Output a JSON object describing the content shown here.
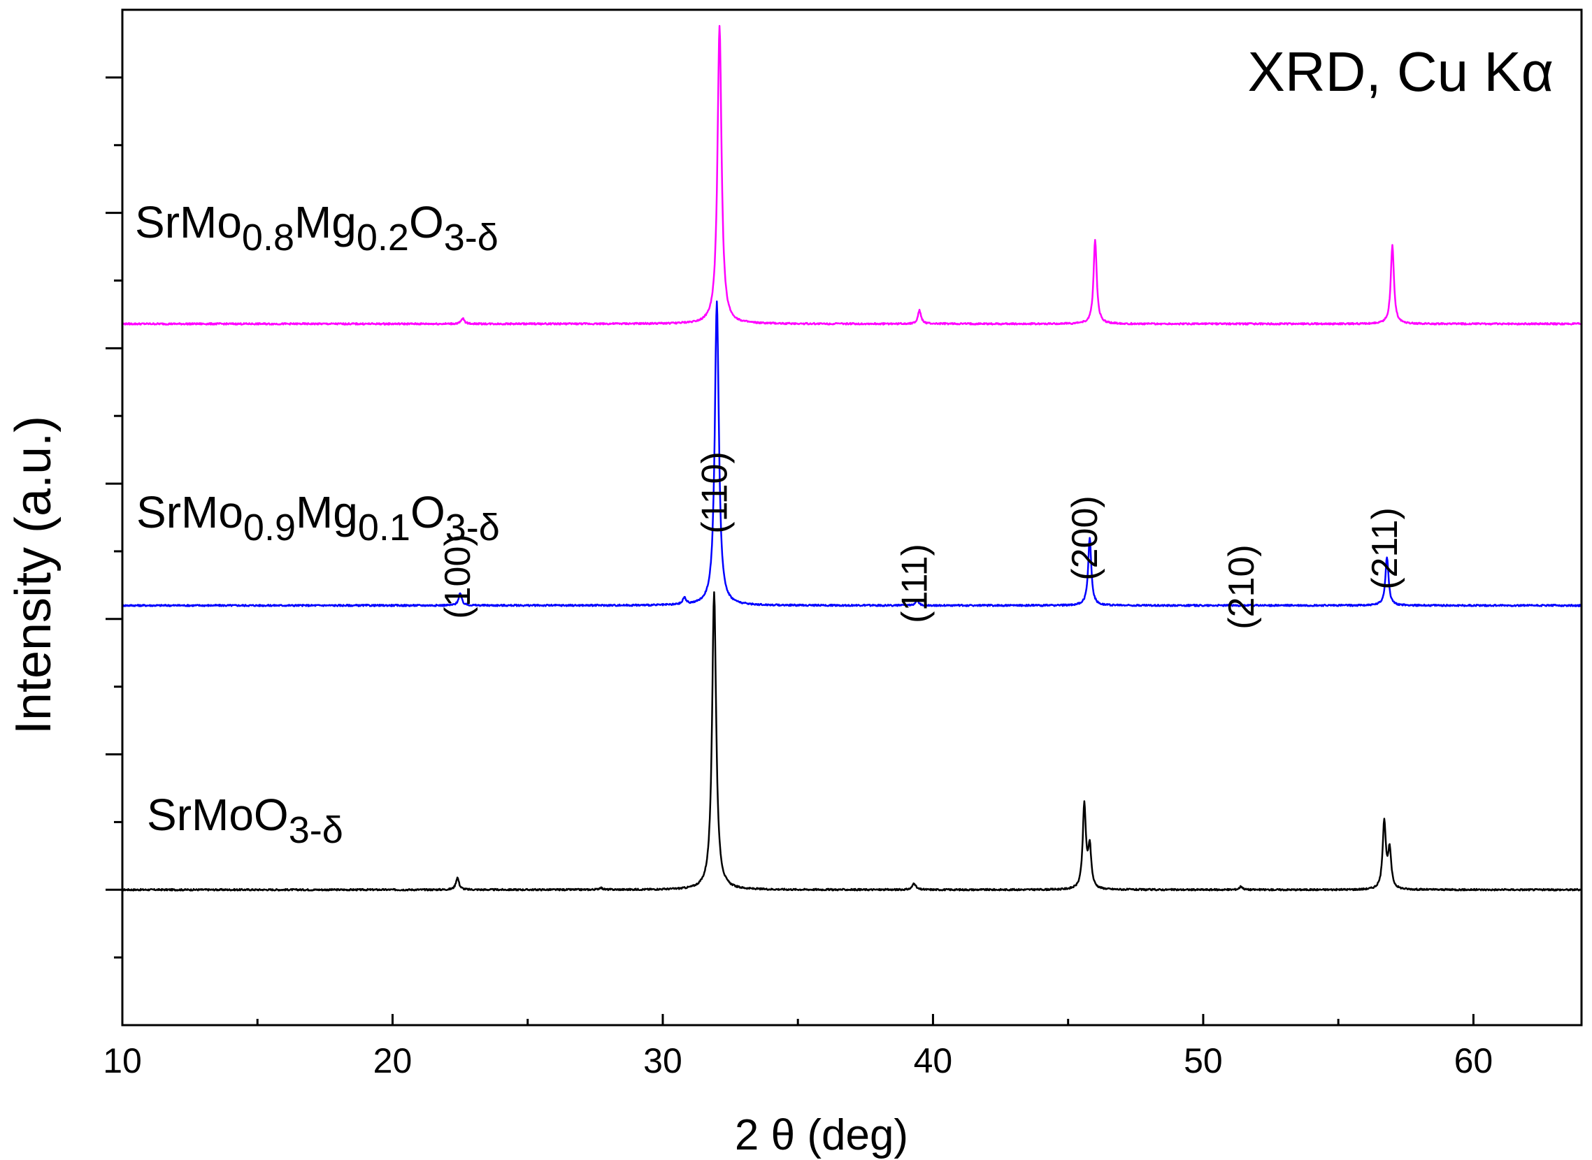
{
  "chart_data": {
    "type": "line",
    "annotation_title": "XRD, Cu Kα",
    "xlabel": "2 θ (deg)",
    "ylabel": "Intensity (a.u.)",
    "xlim": [
      10,
      64
    ],
    "x_ticks": [
      10,
      20,
      30,
      40,
      50,
      60
    ],
    "x_tick_labels": [
      "10",
      "20",
      "30",
      "40",
      "50",
      "60"
    ],
    "y_tick_labels_shown": false,
    "grid": false,
    "series": [
      {
        "name": "SrMoO3-δ",
        "label_parts": [
          {
            "t": "SrMoO",
            "sub": false
          },
          {
            "t": "3-δ",
            "sub": true
          }
        ],
        "color": "#000000",
        "baseline": 0.0,
        "peaks": [
          {
            "x": 22.4,
            "h": 0.09
          },
          {
            "x": 27.7,
            "h": 0.015
          },
          {
            "x": 31.9,
            "h": 2.2
          },
          {
            "x": 39.3,
            "h": 0.05
          },
          {
            "x": 45.6,
            "h": 0.62
          },
          {
            "x": 45.8,
            "h": 0.3
          },
          {
            "x": 51.4,
            "h": 0.025
          },
          {
            "x": 56.7,
            "h": 0.5
          },
          {
            "x": 56.9,
            "h": 0.28
          }
        ]
      },
      {
        "name": "SrMo0.9Mg0.1O3-δ",
        "label_parts": [
          {
            "t": "SrMo",
            "sub": false
          },
          {
            "t": "0.9",
            "sub": true
          },
          {
            "t": "Mg",
            "sub": false
          },
          {
            "t": "0.1",
            "sub": true
          },
          {
            "t": "O",
            "sub": false
          },
          {
            "t": "3-δ",
            "sub": true
          }
        ],
        "color": "#0000ff",
        "baseline": 2.1,
        "peaks": [
          {
            "x": 22.5,
            "h": 0.09
          },
          {
            "x": 30.8,
            "h": 0.05
          },
          {
            "x": 32.0,
            "h": 2.25
          },
          {
            "x": 39.4,
            "h": 0.04
          },
          {
            "x": 45.8,
            "h": 0.5
          },
          {
            "x": 56.8,
            "h": 0.36
          }
        ]
      },
      {
        "name": "SrMo0.8Mg0.2O3-δ",
        "label_parts": [
          {
            "t": "SrMo",
            "sub": false
          },
          {
            "t": "0.8",
            "sub": true
          },
          {
            "t": "Mg",
            "sub": false
          },
          {
            "t": "0.2",
            "sub": true
          },
          {
            "t": "O",
            "sub": false
          },
          {
            "t": "3-δ",
            "sub": true
          }
        ],
        "color": "#ff00ff",
        "baseline": 4.18,
        "peaks": [
          {
            "x": 22.6,
            "h": 0.04
          },
          {
            "x": 32.1,
            "h": 2.2
          },
          {
            "x": 39.5,
            "h": 0.1
          },
          {
            "x": 46.0,
            "h": 0.62
          },
          {
            "x": 57.0,
            "h": 0.58
          }
        ]
      }
    ],
    "annotations": [
      {
        "text": "(100)",
        "x": 22.4
      },
      {
        "text": "(110)",
        "x": 31.9
      },
      {
        "text": "(111)",
        "x": 39.3
      },
      {
        "text": "(200)",
        "x": 45.6
      },
      {
        "text": "(210)",
        "x": 51.4
      },
      {
        "text": "(211)",
        "x": 56.7
      }
    ]
  }
}
